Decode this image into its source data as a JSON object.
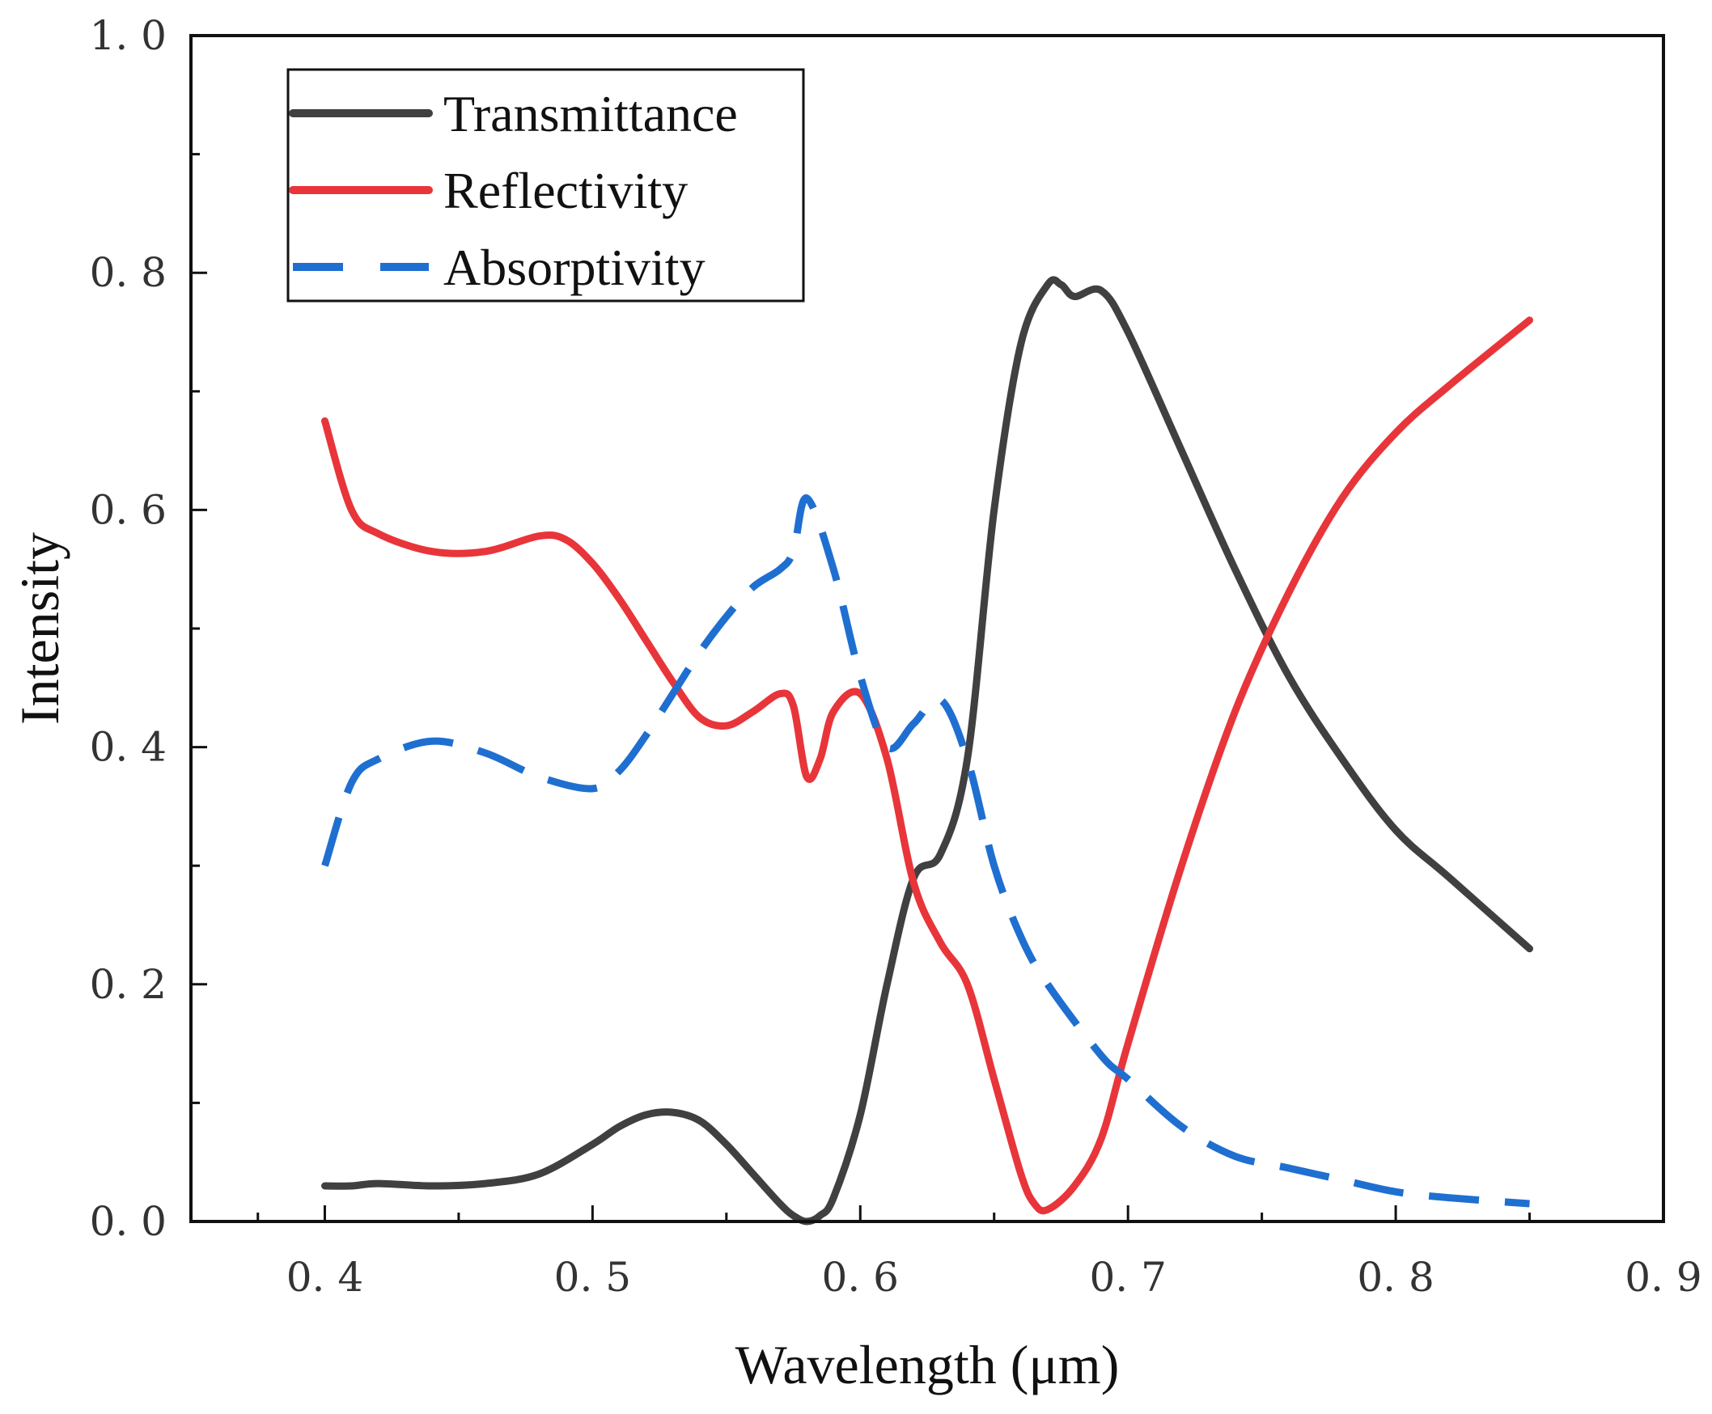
{
  "chart_data": {
    "type": "line",
    "xlabel": "Wavelength (μm)",
    "ylabel": "Intensity",
    "xlim": [
      0.35,
      0.9
    ],
    "ylim": [
      0.0,
      1.0
    ],
    "x_ticks": [
      0.4,
      0.5,
      0.6,
      0.7,
      0.8,
      0.9
    ],
    "x_tick_labels": [
      "0. 4",
      "0. 5",
      "0. 6",
      "0. 7",
      "0. 8",
      "0. 9"
    ],
    "y_ticks": [
      0.0,
      0.2,
      0.4,
      0.6,
      0.8,
      1.0
    ],
    "y_tick_labels": [
      "0. 0",
      "0. 2",
      "0. 4",
      "0. 6",
      "0. 8",
      "1. 0"
    ],
    "grid": false,
    "legend_position": "top-left",
    "series": [
      {
        "name": "Transmittance",
        "color": "#404040",
        "dash": "solid",
        "x": [
          0.4,
          0.41,
          0.42,
          0.44,
          0.46,
          0.48,
          0.5,
          0.51,
          0.52,
          0.53,
          0.54,
          0.55,
          0.56,
          0.57,
          0.575,
          0.58,
          0.585,
          0.59,
          0.6,
          0.61,
          0.62,
          0.63,
          0.64,
          0.65,
          0.66,
          0.67,
          0.675,
          0.68,
          0.69,
          0.7,
          0.72,
          0.74,
          0.76,
          0.78,
          0.8,
          0.82,
          0.85
        ],
        "y": [
          0.03,
          0.03,
          0.032,
          0.03,
          0.032,
          0.04,
          0.065,
          0.08,
          0.09,
          0.092,
          0.085,
          0.065,
          0.04,
          0.015,
          0.005,
          0.0,
          0.005,
          0.02,
          0.09,
          0.2,
          0.29,
          0.31,
          0.39,
          0.6,
          0.74,
          0.79,
          0.79,
          0.78,
          0.785,
          0.75,
          0.65,
          0.55,
          0.46,
          0.39,
          0.33,
          0.29,
          0.23
        ]
      },
      {
        "name": "Reflectivity",
        "color": "#e8353a",
        "dash": "solid",
        "x": [
          0.4,
          0.41,
          0.42,
          0.44,
          0.46,
          0.48,
          0.49,
          0.5,
          0.51,
          0.52,
          0.53,
          0.54,
          0.55,
          0.56,
          0.57,
          0.575,
          0.58,
          0.585,
          0.59,
          0.6,
          0.61,
          0.62,
          0.63,
          0.64,
          0.65,
          0.66,
          0.665,
          0.67,
          0.68,
          0.69,
          0.7,
          0.72,
          0.74,
          0.76,
          0.78,
          0.8,
          0.82,
          0.85
        ],
        "y": [
          0.675,
          0.6,
          0.58,
          0.565,
          0.565,
          0.578,
          0.575,
          0.555,
          0.525,
          0.49,
          0.455,
          0.425,
          0.418,
          0.43,
          0.445,
          0.435,
          0.375,
          0.39,
          0.43,
          0.445,
          0.39,
          0.285,
          0.235,
          0.2,
          0.12,
          0.04,
          0.015,
          0.01,
          0.03,
          0.07,
          0.15,
          0.3,
          0.43,
          0.53,
          0.61,
          0.665,
          0.705,
          0.76
        ]
      },
      {
        "name": "Absorptivity",
        "color": "#1f6fd1",
        "dash": "dashed",
        "x": [
          0.4,
          0.41,
          0.42,
          0.44,
          0.46,
          0.48,
          0.5,
          0.51,
          0.52,
          0.53,
          0.54,
          0.55,
          0.56,
          0.57,
          0.575,
          0.58,
          0.59,
          0.6,
          0.61,
          0.62,
          0.63,
          0.64,
          0.65,
          0.66,
          0.67,
          0.69,
          0.7,
          0.72,
          0.74,
          0.76,
          0.78,
          0.8,
          0.82,
          0.85
        ],
        "y": [
          0.3,
          0.37,
          0.39,
          0.405,
          0.395,
          0.375,
          0.365,
          0.38,
          0.41,
          0.445,
          0.48,
          0.51,
          0.535,
          0.55,
          0.565,
          0.61,
          0.55,
          0.46,
          0.4,
          0.42,
          0.44,
          0.39,
          0.3,
          0.24,
          0.2,
          0.14,
          0.12,
          0.08,
          0.055,
          0.045,
          0.035,
          0.025,
          0.02,
          0.015
        ]
      }
    ]
  }
}
